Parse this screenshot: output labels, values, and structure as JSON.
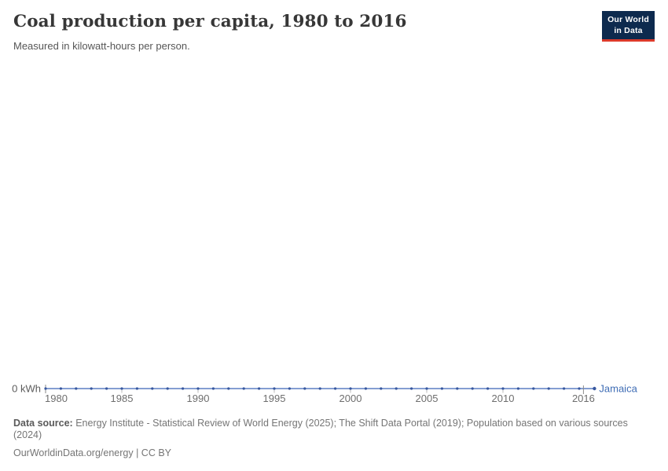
{
  "header": {
    "title": "Coal production per capita, 1980 to 2016",
    "subtitle": "Measured in kilowatt-hours per person.",
    "logo": {
      "line1": "Our World",
      "line2": "in Data"
    }
  },
  "chart_data": {
    "type": "line",
    "title": "Coal production per capita, 1980 to 2016",
    "subtitle": "Measured in kilowatt-hours per person.",
    "unit": "kWh",
    "x": [
      1980,
      1981,
      1982,
      1983,
      1984,
      1985,
      1986,
      1987,
      1988,
      1989,
      1990,
      1991,
      1992,
      1993,
      1994,
      1995,
      1996,
      1997,
      1998,
      1999,
      2000,
      2001,
      2002,
      2003,
      2004,
      2005,
      2006,
      2007,
      2008,
      2009,
      2010,
      2011,
      2012,
      2013,
      2014,
      2015,
      2016
    ],
    "series": [
      {
        "name": "Jamaica",
        "values": [
          0,
          0,
          0,
          0,
          0,
          0,
          0,
          0,
          0,
          0,
          0,
          0,
          0,
          0,
          0,
          0,
          0,
          0,
          0,
          0,
          0,
          0,
          0,
          0,
          0,
          0,
          0,
          0,
          0,
          0,
          0,
          0,
          0,
          0,
          0,
          0,
          0
        ]
      }
    ],
    "xticks": [
      1980,
      1985,
      1990,
      1995,
      2000,
      2005,
      2010,
      2016
    ],
    "ytick_label": "0 kWh",
    "ylim": [
      0,
      0
    ],
    "grid": false,
    "legend": "inline-end-label",
    "entity_label": "Jamaica"
  },
  "colors": {
    "line": "#5b7ec4",
    "marker": "#38589f",
    "entity_label": "#3f6db5",
    "axis_tick_minor": "#bbbbbb",
    "axis_tick_major": "#8a8a8a",
    "logo_bg": "#0d2a4e",
    "logo_accent": "#dc3a2b"
  },
  "footer": {
    "datasource_label": "Data source:",
    "datasource_text": " Energy Institute - Statistical Review of World Energy (2025); The Shift Data Portal (2019); Population based on various sources (2024)",
    "attribution": "OurWorldinData.org/energy | CC BY"
  }
}
